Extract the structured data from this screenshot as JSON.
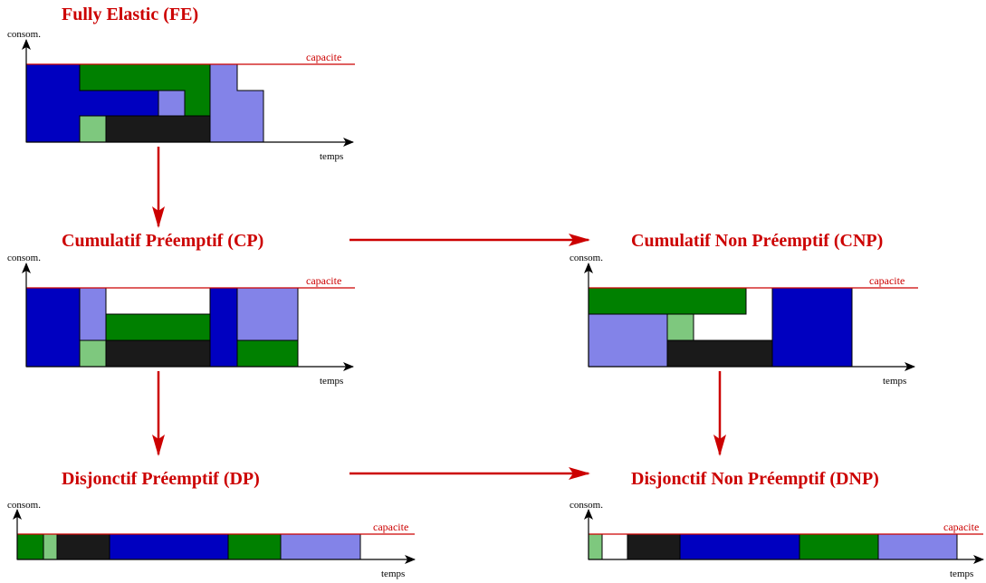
{
  "colors": {
    "red": "#cc0000",
    "blue": "#0000c0",
    "green": "#008000",
    "light_purple": "#8383e8",
    "light_green": "#7ec87e",
    "black": "#1a1a1a",
    "white": "#ffffff"
  },
  "common": {
    "ylabel": "consom.",
    "xlabel": "temps",
    "capacity_label": "capacite"
  },
  "panels": {
    "fe": {
      "title": "Fully Elastic (FE)"
    },
    "cp": {
      "title": "Cumulatif Préemptif (CP)"
    },
    "cnp": {
      "title": "Cumulatif Non Préemptif (CNP)"
    },
    "dp": {
      "title": "Disjonctif Préemptif (DP)"
    },
    "dnp": {
      "title": "Disjonctif Non Préemptif (DNP)"
    }
  }
}
